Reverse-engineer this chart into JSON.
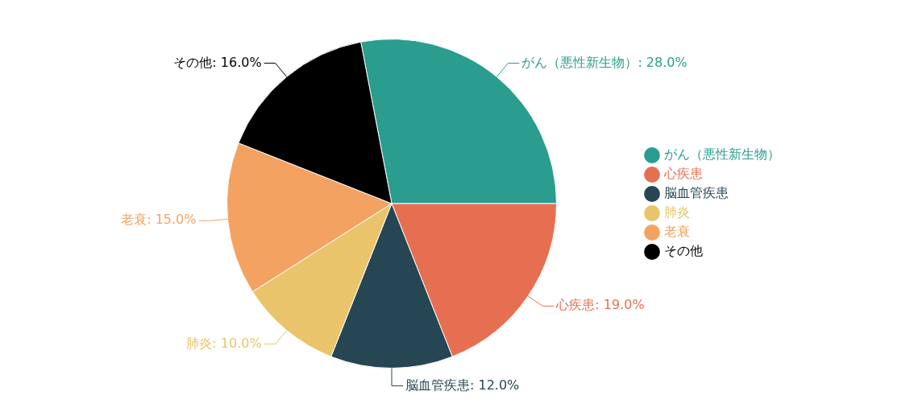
{
  "chart_data": {
    "type": "pie",
    "categories": [
      "がん（悪性新生物）",
      "心疾患",
      "脳血管疾患",
      "肺炎",
      "老衰",
      "その他"
    ],
    "values": [
      28,
      19,
      12,
      10,
      15,
      16
    ],
    "value_labels": [
      ": 28.0%",
      ": 19.0%",
      ": 12.0%",
      ": 10.0%",
      ": 15.0%",
      ": 16.0%"
    ],
    "colors": [
      "#2a9d8f",
      "#e76f51",
      "#264653",
      "#e9c46a",
      "#f4a261",
      "#000000"
    ],
    "legend": "right"
  }
}
